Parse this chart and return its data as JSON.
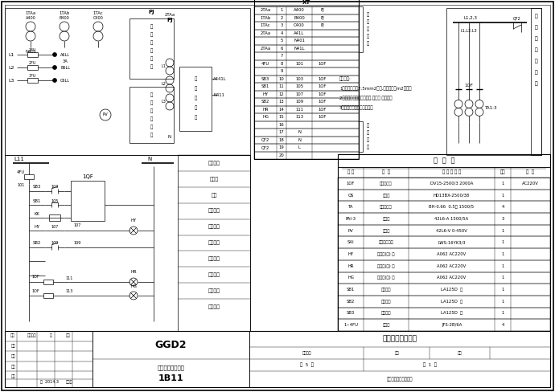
{
  "bg_color": "#ffffff",
  "line_color": "#000000",
  "xt_table": {
    "header": "XT",
    "rows": [
      [
        "2TAa",
        "1",
        "A400",
        "PJ"
      ],
      [
        "1TAb",
        "2",
        "B400",
        "PJ"
      ],
      [
        "1TAc",
        "3",
        "C400",
        "PJ"
      ],
      [
        "2TAa",
        "4",
        "A41L",
        ""
      ],
      [
        "",
        "5",
        "N401",
        ""
      ],
      [
        "2TAa",
        "6",
        "N41L",
        ""
      ],
      [
        "",
        "7",
        "",
        ""
      ],
      [
        "4FU",
        "8",
        "101",
        "1OF"
      ],
      [
        "",
        "9",
        "",
        ""
      ],
      [
        "SB3",
        "10",
        "103",
        "1OF"
      ],
      [
        "SB1",
        "11",
        "105",
        "1OF"
      ],
      [
        "HY",
        "12",
        "107",
        "1OF"
      ],
      [
        "SB2",
        "13",
        "109",
        "1OF"
      ],
      [
        "HR",
        "14",
        "111",
        "1OF"
      ],
      [
        "HG",
        "15",
        "113",
        "1OF"
      ],
      [
        "",
        "16",
        "",
        ""
      ],
      [
        "",
        "17",
        "N",
        ""
      ],
      [
        "QF2",
        "18",
        "N",
        ""
      ],
      [
        "QF2",
        "19",
        "L",
        ""
      ],
      [
        "",
        "20",
        "",
        ""
      ]
    ]
  },
  "equipment_table": {
    "headers": [
      "符 号",
      "名  称",
      "型 号 及 规 格",
      "数量",
      "备  注"
    ],
    "rows": [
      [
        "1OF",
        "低气断路器",
        "DV15-2500/3 2000A",
        "1",
        "AC220V"
      ],
      [
        "QS",
        "刀开关",
        "HD13BX-2500/38",
        "1",
        ""
      ],
      [
        "TA",
        "电流互感器",
        "BH-0.66  0.5级 1500/5",
        "4",
        ""
      ],
      [
        "PAI-3",
        "电流表",
        "42L6-A 1500/5A",
        "3",
        ""
      ],
      [
        "PV",
        "电压表",
        "42L6-V 0-450V",
        "1",
        ""
      ],
      [
        "SAI",
        "电压换相开关",
        "LWS-16YK3/3",
        "1",
        ""
      ],
      [
        "HY",
        "指示灯(黄) 合",
        "A062 AC220V",
        "1",
        ""
      ],
      [
        "HR",
        "指示灯(红) 跳",
        "A062 AC220V",
        "1",
        ""
      ],
      [
        "HG",
        "指示灯(绿) 合",
        "A062 AC220V",
        "1",
        ""
      ],
      [
        "SB1",
        "合闸按钮",
        "LA125D  红",
        "1",
        ""
      ],
      [
        "SB2",
        "分闸按钮",
        "LA125D  绿",
        "1",
        ""
      ],
      [
        "SB3",
        "预备按钮",
        "LA125D  黄",
        "1",
        ""
      ],
      [
        "1~4FU",
        "熔断器",
        "JFS-2B/6A",
        "4",
        ""
      ]
    ]
  },
  "title_block": {
    "project": "某某广场住宅小区",
    "drawing_title": "低压进线柜二次图",
    "drawing_no": "1B11",
    "cabinet": "GGD2",
    "company": "某某某某电气有限公司",
    "date": "2014.3"
  },
  "tech_notes": [
    "技术要点:",
    "1、电缆截面积2.5mm2铜线,电压回路用m2铜线。",
    "2、电缆截二次加工艺走线,美观大 横平竖。",
    "3、继电器相接线按图制作。"
  ],
  "ctrl_labels": [
    "控制电源",
    "断路器",
    "电源",
    "储能回路",
    "手动合闸",
    "储能指示",
    "合闸回路",
    "火压回路",
    "合闸指示",
    "分闸指示"
  ],
  "right_vert_label": [
    "一",
    "次",
    "变",
    "接",
    "变",
    "规",
    "图"
  ]
}
